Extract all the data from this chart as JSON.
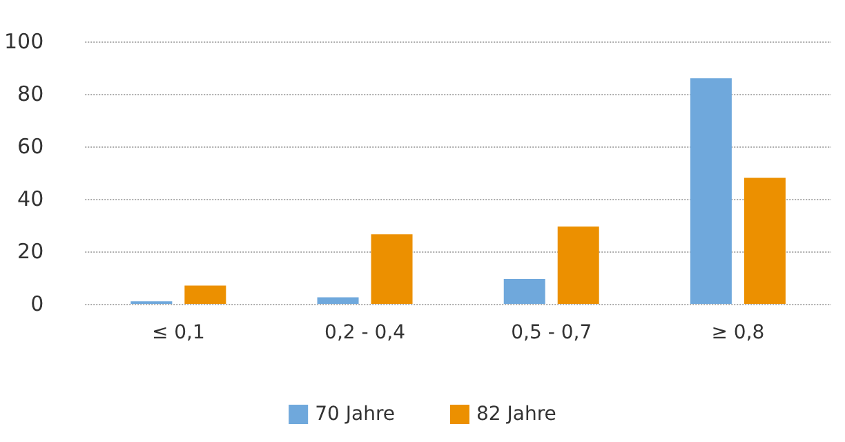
{
  "chart_data": {
    "type": "bar",
    "categories": [
      "≤ 0,1",
      "0,2 - 0,4",
      "0,5 - 0,7",
      "≥ 0,8"
    ],
    "series": [
      {
        "name": "70 Jahre",
        "color": "#6fa8dc",
        "values": [
          1,
          2.5,
          9.5,
          86
        ]
      },
      {
        "name": "82 Jahre",
        "color": "#ec9000",
        "values": [
          7,
          26.5,
          29.5,
          48
        ]
      }
    ],
    "ylim": [
      0,
      100
    ],
    "yticks": [
      0,
      20,
      40,
      60,
      80,
      100
    ],
    "grid": "y",
    "line_style": "dotted",
    "legend": "bottom"
  }
}
